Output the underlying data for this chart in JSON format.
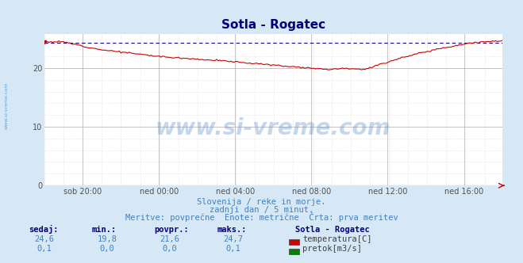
{
  "title": "Sotla - Rogatec",
  "title_color": "#000080",
  "background_color": "#d6e8f5",
  "plot_bg_color": "#ffffff",
  "grid_color_major": "#b0b0b0",
  "grid_color_minor_h": "#e8c8c8",
  "grid_color_minor_v": "#e8c8c8",
  "x_tick_labels": [
    "sob 20:00",
    "ned 00:00",
    "ned 04:00",
    "ned 08:00",
    "ned 12:00",
    "ned 16:00"
  ],
  "x_tick_fractions": [
    0.0833,
    0.25,
    0.4167,
    0.5833,
    0.75,
    0.9167
  ],
  "y_ticks": [
    0,
    10,
    20
  ],
  "ylim": [
    0,
    25.8
  ],
  "xlim_n": 288,
  "temp_color": "#cc0000",
  "flow_color": "#008000",
  "avg_line_color": "#000080",
  "watermark_text": "www.si-vreme.com",
  "watermark_color": "#4080c0",
  "watermark_alpha": 0.3,
  "sub_line1": "Slovenija / reke in morje.",
  "sub_line2": "zadnji dan / 5 minut.",
  "sub_line3": "Meritve: povprečne  Enote: metrične  Črta: prva meritev",
  "sub_color": "#4080c0",
  "table_headers": [
    "sedaj:",
    "min.:",
    "povpr.:",
    "maks.:"
  ],
  "table_header_color": "#000080",
  "table_values_temp": [
    "24,6",
    "19,8",
    "21,6",
    "24,7"
  ],
  "table_values_flow": [
    "0,1",
    "0,0",
    "0,0",
    "0,1"
  ],
  "table_value_color": "#4080c0",
  "station_name": "Sotla - Rogatec",
  "legend_temp": "temperatura[C]",
  "legend_flow": "pretok[m3/s]",
  "avg_temp": 24.4,
  "n_points": 288
}
